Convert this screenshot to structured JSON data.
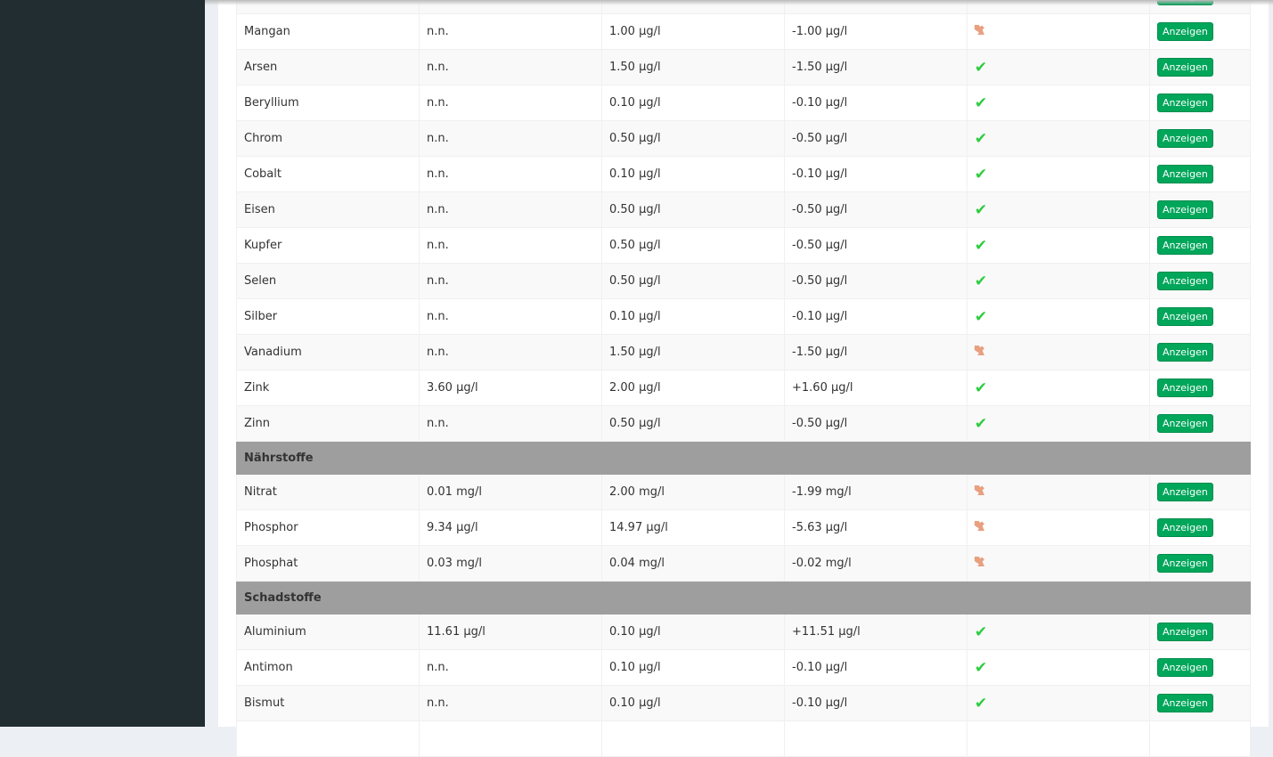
{
  "button_label": "Anzeigen",
  "colors": {
    "sidebar": "#222d32",
    "section": "#9e9e9e",
    "button": "#00a65a",
    "ok": "#2ecc40",
    "warn": "#e8a080"
  },
  "sections": [
    {
      "title": null,
      "rows": [
        {
          "name": "",
          "value": "",
          "limit": "",
          "diff": "",
          "status": "ok"
        },
        {
          "name": "Mangan",
          "value": "n.n.",
          "limit": "1.00 µg/l",
          "diff": "-1.00 µg/l",
          "status": "warn"
        },
        {
          "name": "Arsen",
          "value": "n.n.",
          "limit": "1.50 µg/l",
          "diff": "-1.50 µg/l",
          "status": "ok"
        },
        {
          "name": "Beryllium",
          "value": "n.n.",
          "limit": "0.10 µg/l",
          "diff": "-0.10 µg/l",
          "status": "ok"
        },
        {
          "name": "Chrom",
          "value": "n.n.",
          "limit": "0.50 µg/l",
          "diff": "-0.50 µg/l",
          "status": "ok"
        },
        {
          "name": "Cobalt",
          "value": "n.n.",
          "limit": "0.10 µg/l",
          "diff": "-0.10 µg/l",
          "status": "ok"
        },
        {
          "name": "Eisen",
          "value": "n.n.",
          "limit": "0.50 µg/l",
          "diff": "-0.50 µg/l",
          "status": "ok"
        },
        {
          "name": "Kupfer",
          "value": "n.n.",
          "limit": "0.50 µg/l",
          "diff": "-0.50 µg/l",
          "status": "ok"
        },
        {
          "name": "Selen",
          "value": "n.n.",
          "limit": "0.50 µg/l",
          "diff": "-0.50 µg/l",
          "status": "ok"
        },
        {
          "name": "Silber",
          "value": "n.n.",
          "limit": "0.10 µg/l",
          "diff": "-0.10 µg/l",
          "status": "ok"
        },
        {
          "name": "Vanadium",
          "value": "n.n.",
          "limit": "1.50 µg/l",
          "diff": "-1.50 µg/l",
          "status": "warn"
        },
        {
          "name": "Zink",
          "value": "3.60 µg/l",
          "limit": "2.00 µg/l",
          "diff": "+1.60 µg/l",
          "status": "ok"
        },
        {
          "name": "Zinn",
          "value": "n.n.",
          "limit": "0.50 µg/l",
          "diff": "-0.50 µg/l",
          "status": "ok"
        }
      ]
    },
    {
      "title": "Nährstoffe",
      "rows": [
        {
          "name": "Nitrat",
          "value": "0.01 mg/l",
          "limit": "2.00 mg/l",
          "diff": "-1.99 mg/l",
          "status": "warn"
        },
        {
          "name": "Phosphor",
          "value": "9.34 µg/l",
          "limit": "14.97 µg/l",
          "diff": "-5.63 µg/l",
          "status": "warn"
        },
        {
          "name": "Phosphat",
          "value": "0.03 mg/l",
          "limit": "0.04 mg/l",
          "diff": "-0.02 mg/l",
          "status": "warn"
        }
      ]
    },
    {
      "title": "Schadstoffe",
      "rows": [
        {
          "name": "Aluminium",
          "value": "11.61 µg/l",
          "limit": "0.10 µg/l",
          "diff": "+11.51 µg/l",
          "status": "ok"
        },
        {
          "name": "Antimon",
          "value": "n.n.",
          "limit": "0.10 µg/l",
          "diff": "-0.10 µg/l",
          "status": "ok"
        },
        {
          "name": "Bismut",
          "value": "n.n.",
          "limit": "0.10 µg/l",
          "diff": "-0.10 µg/l",
          "status": "ok"
        },
        {
          "name": "",
          "value": "",
          "limit": "",
          "diff": "",
          "status": ""
        }
      ]
    }
  ]
}
